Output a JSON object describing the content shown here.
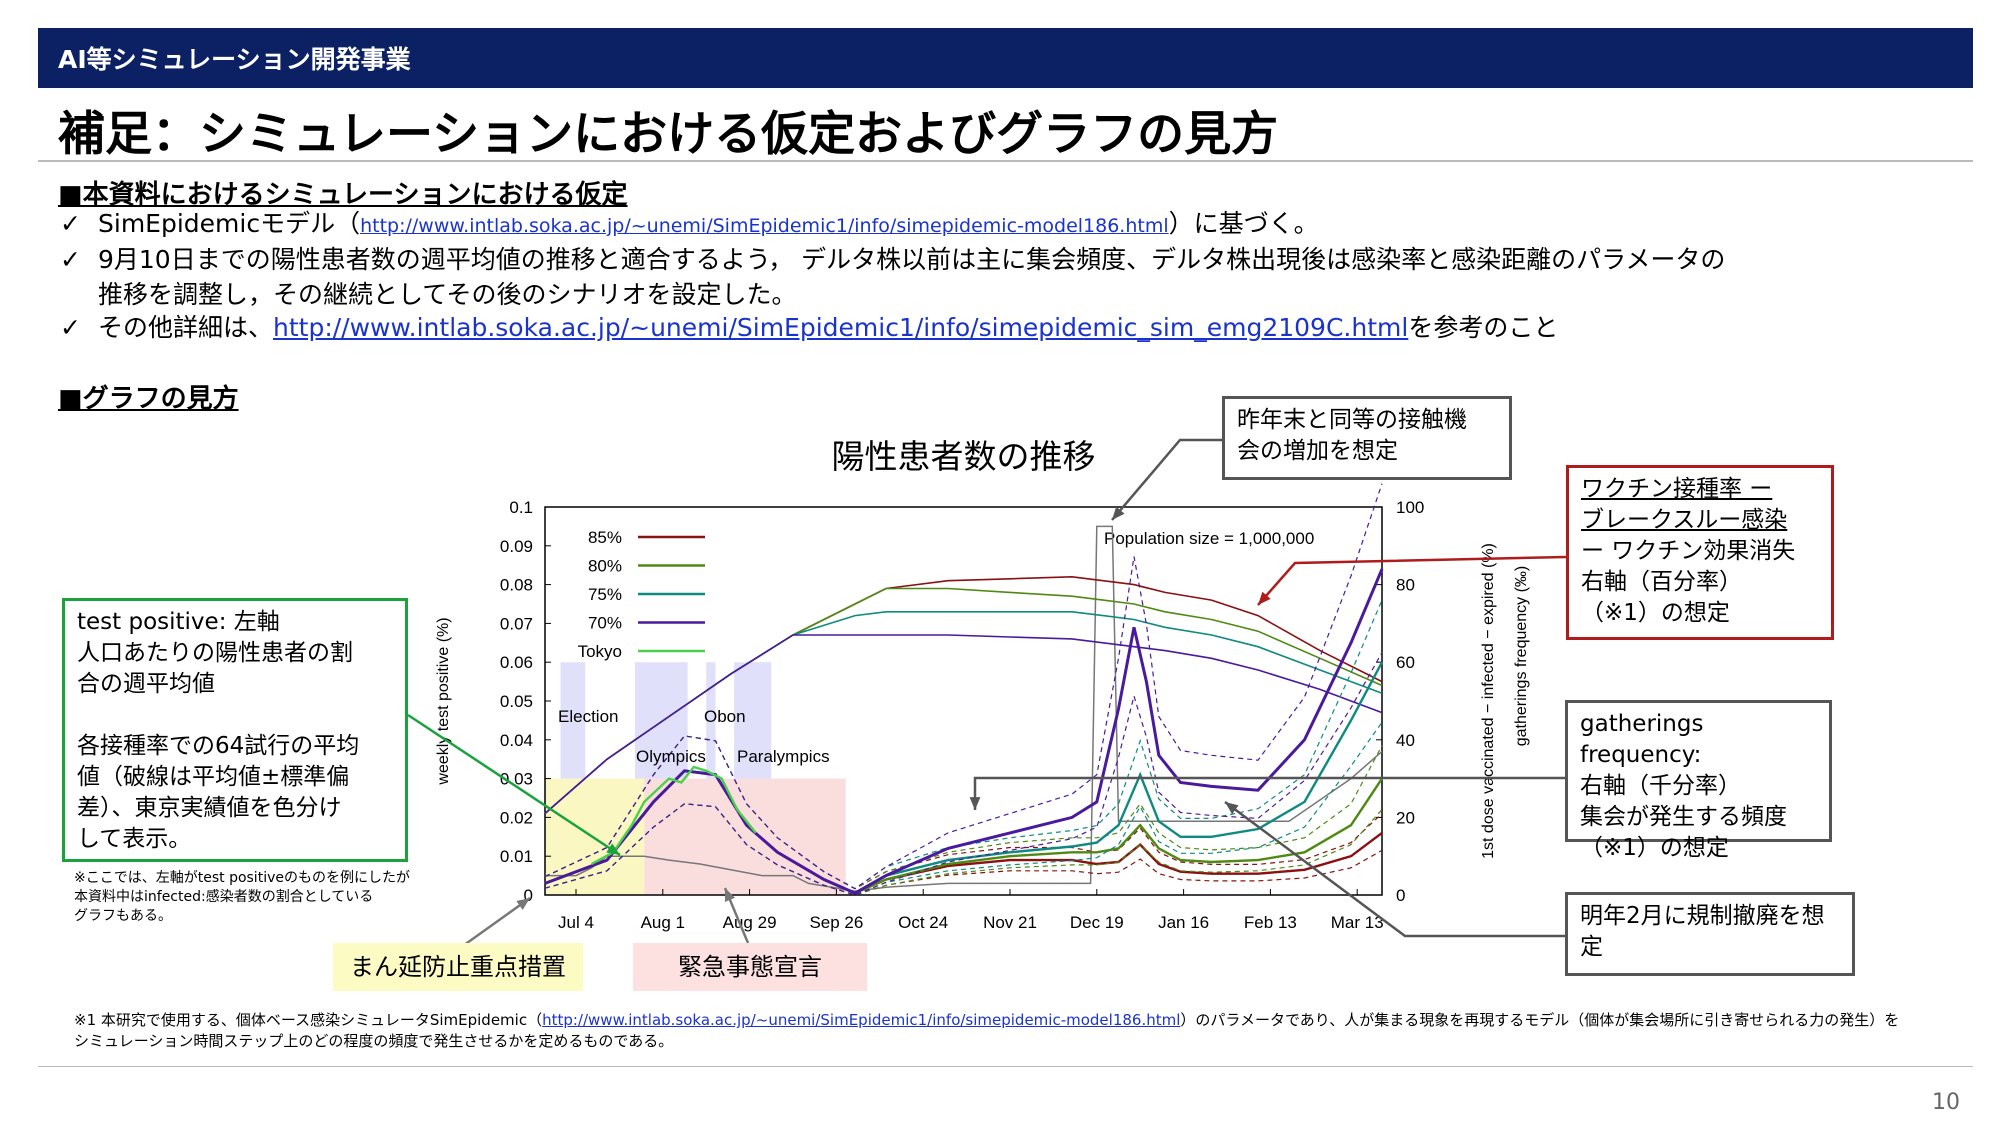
{
  "header": {
    "section": "AI等シミュレーション開発事業",
    "title": "補足：シミュレーションにおける仮定およびグラフの見方"
  },
  "assumptions": {
    "heading": "■本資料におけるシミュレーションにおける仮定",
    "b1_pre": "SimEpidemicモデル（",
    "b1_link": "http://www.intlab.soka.ac.jp/~unemi/SimEpidemic1/info/simepidemic-model186.html",
    "b1_post": "）に基づく。",
    "b2_line1": "9月10日までの陽性患者数の週平均値の推移と適合するよう，  デルタ株以前は主に集会頻度、デルタ株出現後は感染率と感染距離のパラメータの",
    "b2_line2": "推移を調整し，その継続としてその後のシナリオを設定した。",
    "b3_pre": "その他詳細は、",
    "b3_link": "http://www.intlab.soka.ac.jp/~unemi/SimEpidemic1/info/simepidemic_sim_emg2109C.html",
    "b3_post": "を参考のこと"
  },
  "graph_heading": "■グラフの見方",
  "callouts": {
    "test_positive": [
      "test positive: 左軸",
      "人口あたりの陽性患者の割",
      "合の週平均値",
      "",
      "各接種率での64試行の平均",
      "値（破線は平均値±標準偏",
      "差）、東京実績値を色分け",
      "して表示。"
    ],
    "contact": [
      "昨年末と同等の接触機",
      "会の増加を想定"
    ],
    "vaccine": [
      "ワクチン接種率 ー",
      "ブレークスルー感染",
      "ー ワクチン効果消失",
      "右軸（百分率）",
      "（※1）の想定"
    ],
    "gatherings": [
      "gatherings frequency:",
      "右軸（千分率）",
      "集会が発生する頻度",
      "（※1）の想定"
    ],
    "february": [
      "明年2月に規制撤廃を想",
      "定"
    ],
    "left_axis_note": [
      "※ここでは、左軸がtest positiveのものを例にしたが",
      "本資料中はinfected:感染者数の割合としている",
      "グラフもある。"
    ]
  },
  "labels": {
    "manen": "まん延防止重点措置",
    "emergency": "緊急事態宣言"
  },
  "footnote": {
    "pre": "※1 本研究で使用する、個体ベース感染シミュレータSimEpidemic（",
    "link": "http://www.intlab.soka.ac.jp/~unemi/SimEpidemic1/info/simepidemic-model186.html",
    "post": "）のパラメータであり、人が集まる現象を再現するモデル（個体が集会場所に引き寄せられる力の発生）を",
    "line2": "シミュレーション時間ステップ上のどの程度の頻度で発生させるかを定めるものである。"
  },
  "page_number": "10",
  "chart_data": {
    "type": "line",
    "title": "陽性患者数の推移",
    "ylabel": "weekly test positive (%)",
    "y2label": "1st dose vaccinated − infected − expired (%)",
    "y3label": "gatherings frequency (‰)",
    "annotation": "Population size = 1,000,000",
    "x_range_days": [
      0,
      270
    ],
    "x_ticks": [
      {
        "label": "Jul 4",
        "day": 10
      },
      {
        "label": "Aug 1",
        "day": 38
      },
      {
        "label": "Aug 29",
        "day": 66
      },
      {
        "label": "Sep 26",
        "day": 94
      },
      {
        "label": "Oct 24",
        "day": 122
      },
      {
        "label": "Nov 21",
        "day": 150
      },
      {
        "label": "Dec 19",
        "day": 178
      },
      {
        "label": "Jan 16",
        "day": 206
      },
      {
        "label": "Feb 13",
        "day": 234
      },
      {
        "label": "Mar 13",
        "day": 262
      }
    ],
    "ylim": [
      0,
      0.1
    ],
    "y_ticks": [
      "0",
      "0.01",
      "0.02",
      "0.03",
      "0.04",
      "0.05",
      "0.06",
      "0.07",
      "0.08",
      "0.09",
      "0.1"
    ],
    "y2lim": [
      0,
      100
    ],
    "y2_ticks": [
      "0",
      "20",
      "40",
      "60",
      "80",
      "100"
    ],
    "legend": [
      {
        "name": "85%",
        "color": "#8b1010"
      },
      {
        "name": "80%",
        "color": "#4e8a12"
      },
      {
        "name": "75%",
        "color": "#0f8a80"
      },
      {
        "name": "70%",
        "color": "#4a1a9c"
      },
      {
        "name": "Tokyo",
        "color": "#4cd04c"
      }
    ],
    "event_labels": [
      "Election",
      "Olympics",
      "Obon",
      "Paralympics"
    ],
    "series_left": [
      {
        "name": "85%",
        "color": "#8b1010",
        "x": [
          0,
          20,
          35,
          45,
          55,
          65,
          75,
          90,
          100,
          110,
          130,
          150,
          170,
          178,
          185,
          192,
          198,
          205,
          215,
          230,
          245,
          260,
          270
        ],
        "y": [
          0.003,
          0.009,
          0.024,
          0.032,
          0.031,
          0.018,
          0.011,
          0.004,
          0.0005,
          0.004,
          0.0075,
          0.009,
          0.009,
          0.008,
          0.0085,
          0.013,
          0.008,
          0.006,
          0.0055,
          0.0055,
          0.0065,
          0.01,
          0.016
        ]
      },
      {
        "name": "80%",
        "color": "#4e8a12",
        "x": [
          0,
          20,
          35,
          45,
          55,
          65,
          75,
          90,
          100,
          110,
          130,
          150,
          170,
          178,
          185,
          192,
          198,
          205,
          215,
          230,
          245,
          260,
          270
        ],
        "y": [
          0.003,
          0.009,
          0.024,
          0.032,
          0.031,
          0.018,
          0.011,
          0.004,
          0.0005,
          0.004,
          0.008,
          0.01,
          0.011,
          0.011,
          0.012,
          0.018,
          0.012,
          0.009,
          0.0085,
          0.009,
          0.011,
          0.018,
          0.03
        ]
      },
      {
        "name": "75%",
        "color": "#0f8a80",
        "x": [
          0,
          20,
          35,
          45,
          55,
          65,
          75,
          90,
          100,
          110,
          130,
          150,
          170,
          178,
          185,
          192,
          198,
          205,
          215,
          230,
          245,
          260,
          270
        ],
        "y": [
          0.003,
          0.009,
          0.024,
          0.032,
          0.031,
          0.018,
          0.011,
          0.004,
          0.0005,
          0.005,
          0.009,
          0.011,
          0.0125,
          0.0135,
          0.018,
          0.031,
          0.019,
          0.015,
          0.015,
          0.017,
          0.024,
          0.045,
          0.06
        ]
      },
      {
        "name": "70%",
        "color": "#4a1a9c",
        "x": [
          0,
          20,
          35,
          45,
          55,
          65,
          75,
          90,
          100,
          110,
          130,
          150,
          170,
          178,
          185,
          190,
          194,
          198,
          205,
          215,
          230,
          245,
          260,
          270
        ],
        "y": [
          0.003,
          0.009,
          0.024,
          0.032,
          0.031,
          0.018,
          0.011,
          0.004,
          0.0005,
          0.005,
          0.012,
          0.016,
          0.02,
          0.024,
          0.048,
          0.069,
          0.055,
          0.036,
          0.029,
          0.028,
          0.027,
          0.04,
          0.065,
          0.084
        ]
      },
      {
        "name": "Tokyo",
        "color": "#4cd04c",
        "x": [
          15,
          22,
          28,
          32,
          36,
          40,
          44,
          48,
          52,
          57,
          62,
          68
        ],
        "y": [
          0.008,
          0.011,
          0.018,
          0.024,
          0.027,
          0.03,
          0.029,
          0.033,
          0.032,
          0.03,
          0.022,
          0.016
        ]
      }
    ],
    "series_right": [
      {
        "name": "85%",
        "color": "#8b1010",
        "x": [
          0,
          20,
          40,
          60,
          80,
          100,
          110,
          130,
          150,
          170,
          180,
          190,
          200,
          215,
          230,
          250,
          270
        ],
        "y": [
          21,
          35,
          46,
          57,
          67,
          75,
          79,
          81,
          81.5,
          82,
          81,
          80,
          78,
          76,
          72,
          63,
          55
        ]
      },
      {
        "name": "80%",
        "color": "#4e8a12",
        "x": [
          0,
          20,
          40,
          60,
          80,
          100,
          110,
          130,
          150,
          170,
          180,
          190,
          200,
          215,
          230,
          250,
          270
        ],
        "y": [
          21,
          35,
          46,
          57,
          67,
          75,
          79,
          79,
          78,
          77,
          76,
          75,
          73,
          71,
          68,
          61,
          54
        ]
      },
      {
        "name": "75%",
        "color": "#0f8a80",
        "x": [
          0,
          20,
          40,
          60,
          80,
          100,
          110,
          130,
          150,
          170,
          180,
          190,
          200,
          215,
          230,
          250,
          270
        ],
        "y": [
          21,
          35,
          46,
          57,
          67,
          72,
          73,
          73,
          73,
          73,
          72,
          71,
          69,
          67,
          64,
          58,
          52
        ]
      },
      {
        "name": "70%",
        "color": "#4a1a9c",
        "x": [
          0,
          20,
          40,
          60,
          80,
          100,
          110,
          130,
          150,
          170,
          180,
          190,
          200,
          215,
          230,
          250,
          270
        ],
        "y": [
          21,
          35,
          46,
          57,
          67,
          67,
          67,
          67,
          66.5,
          66,
          65,
          64,
          63,
          61,
          58,
          53,
          47
        ]
      }
    ],
    "gatherings": {
      "color": "#777777",
      "x": [
        0,
        10,
        15,
        20,
        32,
        40,
        50,
        70,
        80,
        85,
        100,
        110,
        130,
        170,
        176,
        178,
        183,
        185,
        190,
        195,
        205,
        215,
        225,
        240,
        260,
        270
      ],
      "y": [
        5,
        5,
        7,
        10,
        10,
        9,
        8,
        5,
        5,
        3,
        1,
        2,
        3,
        3,
        3,
        95,
        95,
        19,
        19,
        19,
        19,
        19,
        19,
        19,
        30,
        37
      ]
    }
  }
}
